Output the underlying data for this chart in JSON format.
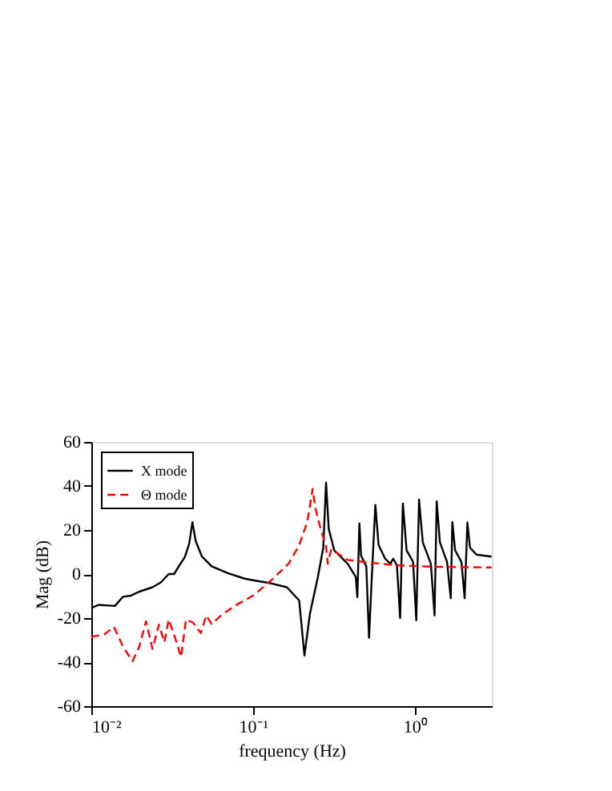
{
  "chart_data": {
    "type": "line",
    "xlabel": "frequency (Hz)",
    "ylabel": "Mag (dB)",
    "log": "x",
    "xlim": [
      0.01,
      3
    ],
    "xticks": [
      {
        "value": 0.01,
        "label": "10⁻²"
      },
      {
        "value": 0.1,
        "label": "10⁻¹"
      },
      {
        "value": 1,
        "label": "10⁰"
      }
    ],
    "ylim": [
      -60,
      60
    ],
    "yticks": [
      -60,
      -40,
      -20,
      0,
      20,
      40,
      60
    ],
    "grid": false,
    "legend": "top left",
    "series": [
      {
        "name": "X mode",
        "color": "#000000",
        "line_style": "solid",
        "x": [
          0.01,
          0.0111,
          0.014,
          0.0157,
          0.0176,
          0.0198,
          0.0239,
          0.0269,
          0.0301,
          0.0325,
          0.0351,
          0.0378,
          0.0403,
          0.0422,
          0.0442,
          0.0483,
          0.0555,
          0.0698,
          0.0879,
          0.1,
          0.129,
          0.162,
          0.193,
          0.208,
          0.225,
          0.252,
          0.272,
          0.283,
          0.294,
          0.318,
          0.385,
          0.432,
          0.442,
          0.455,
          0.466,
          0.502,
          0.522,
          0.542,
          0.571,
          0.598,
          0.656,
          0.708,
          0.736,
          0.776,
          0.813,
          0.845,
          0.891,
          0.977,
          1.023,
          1.064,
          1.122,
          1.259,
          1.327,
          1.368,
          1.432,
          1.585,
          1.671,
          1.71,
          1.778,
          1.945,
          2.037,
          2.118,
          2.198,
          2.41,
          2.985
        ],
        "values": [
          -15.4,
          -14,
          -14.5,
          -10.3,
          -9.8,
          -8,
          -6,
          -3.8,
          0,
          0,
          4,
          7.6,
          13.7,
          23.6,
          15,
          8,
          3.5,
          0.4,
          -2,
          -2.8,
          -4.2,
          -6,
          -12,
          -37,
          -18,
          -1.3,
          12,
          41.6,
          20.5,
          10.8,
          4.7,
          -1.3,
          -10.5,
          23,
          8.4,
          3.5,
          -29,
          -2.5,
          31.4,
          13.2,
          7,
          4.7,
          7,
          4,
          -20,
          32,
          10.8,
          5.5,
          -21,
          33.8,
          14.4,
          4.7,
          -18.8,
          33,
          14.4,
          5.5,
          -11,
          23.6,
          10.8,
          5.5,
          -11,
          23.4,
          12,
          8.8,
          7.9
        ]
      },
      {
        "name": "Θ mode",
        "color": "#ff0000",
        "line_style": "dashed",
        "x": [
          0.01,
          0.012,
          0.0138,
          0.0157,
          0.018,
          0.0198,
          0.0218,
          0.0239,
          0.0262,
          0.0283,
          0.0301,
          0.033,
          0.0359,
          0.0385,
          0.0425,
          0.0476,
          0.0514,
          0.0555,
          0.0647,
          0.0813,
          0.1,
          0.129,
          0.166,
          0.193,
          0.217,
          0.234,
          0.243,
          0.262,
          0.283,
          0.29,
          0.305,
          0.385,
          0.522,
          0.766,
          1.306,
          2.985
        ],
        "values": [
          -28.5,
          -27.5,
          -24,
          -33,
          -39.6,
          -33,
          -21.5,
          -34,
          -23,
          -31,
          -20.7,
          -29,
          -37.7,
          -20.7,
          -22,
          -26.8,
          -18.8,
          -22.7,
          -18.3,
          -13.5,
          -9.8,
          -3,
          4.7,
          13,
          24,
          38.7,
          30,
          20.5,
          12.7,
          4.7,
          11.3,
          6.4,
          5.2,
          4,
          3.3,
          3
        ]
      }
    ]
  }
}
